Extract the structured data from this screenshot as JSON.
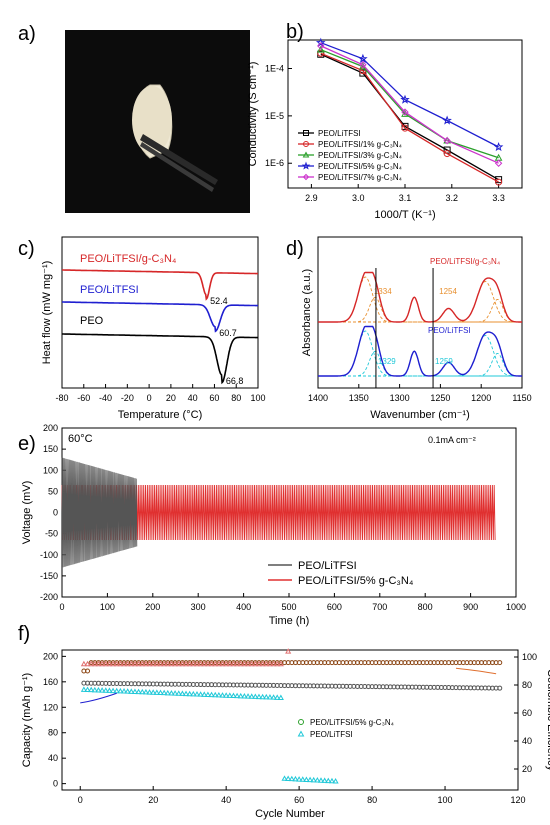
{
  "chart_data": [
    {
      "panel": "a)",
      "type": "photo",
      "description_label": ""
    },
    {
      "panel": "b)",
      "type": "line",
      "xlabel": "1000/T (K⁻¹)",
      "ylabel": "Conductivity (S cm⁻¹)",
      "xlim": [
        2.85,
        3.35
      ],
      "ylim": [
        3e-07,
        0.0004
      ],
      "log_y": true,
      "xticks": [
        "2.9",
        "3.0",
        "3.1",
        "3.2",
        "3.3"
      ],
      "yticks": [
        "1E-6",
        "1E-5",
        "1E-4"
      ],
      "x": [
        2.92,
        3.01,
        3.1,
        3.19,
        3.3
      ],
      "series": [
        {
          "name": "PEO/LiTFSI",
          "marker": "square",
          "color": "#000000",
          "values": [
            0.0002,
            8e-05,
            6e-06,
            1.9e-06,
            4.5e-07
          ]
        },
        {
          "name": "PEO/LiTFSI/1% g-C₃N₄",
          "marker": "circle",
          "color": "#d62728",
          "values": [
            0.00021,
            9e-05,
            5.5e-06,
            1.6e-06,
            4e-07
          ]
        },
        {
          "name": "PEO/LiTFSI/3% g-C₃N₄",
          "marker": "triangle",
          "color": "#2ca02c",
          "values": [
            0.00025,
            0.00011,
            1.1e-05,
            3e-06,
            1.3e-06
          ]
        },
        {
          "name": "PEO/LiTFSI/5% g-C₃N₄",
          "marker": "star",
          "color": "#1f1fd0",
          "values": [
            0.00035,
            0.00016,
            2.2e-05,
            8e-06,
            2.2e-06
          ]
        },
        {
          "name": "PEO/LiTFSI/7% g-C₃N₄",
          "marker": "diamond",
          "color": "#cc33cc",
          "values": [
            0.0003,
            0.00012,
            1.2e-05,
            3e-06,
            1e-06
          ]
        }
      ]
    },
    {
      "panel": "c)",
      "type": "line",
      "xlabel": "Temperature (°C)",
      "ylabel": "Heat flow (mW mg⁻¹)",
      "xlim": [
        -80,
        100
      ],
      "xticks": [
        "-80",
        "-60",
        "-40",
        "-20",
        "0",
        "20",
        "40",
        "60",
        "80",
        "100"
      ],
      "series": [
        {
          "name": "PEO/LiTFSI/g-C₃N₄",
          "color": "#d62728",
          "peak_label": "52.4",
          "peak_x": 52.4
        },
        {
          "name": "PEO/LiTFSI",
          "color": "#1f1fd0",
          "peak_label": "60.7",
          "peak_x": 60.7
        },
        {
          "name": "PEO",
          "color": "#000000",
          "peak_label": "66.8",
          "peak_x": 66.8
        }
      ]
    },
    {
      "panel": "d)",
      "type": "line",
      "xlabel": "Wavenumber (cm⁻¹)",
      "ylabel": "Absorbance (a.u.)",
      "xlim": [
        1400,
        1150
      ],
      "xticks": [
        "1400",
        "1350",
        "1300",
        "1250",
        "1200",
        "1150"
      ],
      "series": [
        {
          "name": "PEO/LiTFSI/g-C₃N₄",
          "color": "#d62728",
          "fit_color": "#e89030",
          "annotations": [
            "1334",
            "1254"
          ]
        },
        {
          "name": "PEO/LiTFSI",
          "color": "#1f1fd0",
          "fit_color": "#20c8d8",
          "annotations": [
            "1329",
            "1259"
          ]
        }
      ],
      "reference_lines_x": [
        1329,
        1259
      ]
    },
    {
      "panel": "e)",
      "type": "line",
      "xlabel": "Time (h)",
      "ylabel": "Voltage (mV)",
      "xlim": [
        0,
        1000
      ],
      "ylim": [
        -200,
        200
      ],
      "xticks": [
        "0",
        "100",
        "200",
        "300",
        "400",
        "500",
        "600",
        "700",
        "800",
        "900",
        "1000"
      ],
      "yticks": [
        "-200",
        "-150",
        "-100",
        "-50",
        "0",
        "50",
        "100",
        "150",
        "200"
      ],
      "annotation_temp": "60°C",
      "annotation_current": "0.1mA cm⁻²",
      "series": [
        {
          "name": "PEO/LiTFSI",
          "color": "#555555",
          "end_time": 165,
          "amplitude_start": 130,
          "amplitude_end": 80
        },
        {
          "name": "PEO/LiTFSI/5% g-C₃N₄",
          "color": "#e03030",
          "end_time": 955,
          "amplitude": 65
        }
      ]
    },
    {
      "panel": "f)",
      "type": "scatter",
      "xlabel": "Cycle Number",
      "ylabel": "Capacity (mAh g⁻¹)",
      "y2label": "Coulombic Efficiency",
      "xlim": [
        -5,
        120
      ],
      "ylim": [
        -10,
        210
      ],
      "y2lim": [
        5,
        105
      ],
      "xticks": [
        "0",
        "20",
        "40",
        "60",
        "80",
        "100",
        "120"
      ],
      "yticks": [
        "0",
        "40",
        "80",
        "120",
        "160",
        "200"
      ],
      "y2ticks": [
        "20",
        "40",
        "60",
        "80",
        "100"
      ],
      "series": [
        {
          "name": "PEO/LiTFSI/5% g-C₃N₄",
          "marker": "circle",
          "capacity_color": "#555555",
          "ce_color": "#8b4513",
          "cycles": 115,
          "capacity_start": 158,
          "capacity_end": 150,
          "ce": 96
        },
        {
          "name": "PEO/LiTFSI",
          "marker": "triangle",
          "capacity_color": "#20c8d8",
          "ce_color": "#e07070",
          "cycles": 55,
          "capacity_start": 148,
          "capacity_end": 135,
          "ce": 96,
          "fail_capacity": 8
        }
      ]
    }
  ]
}
